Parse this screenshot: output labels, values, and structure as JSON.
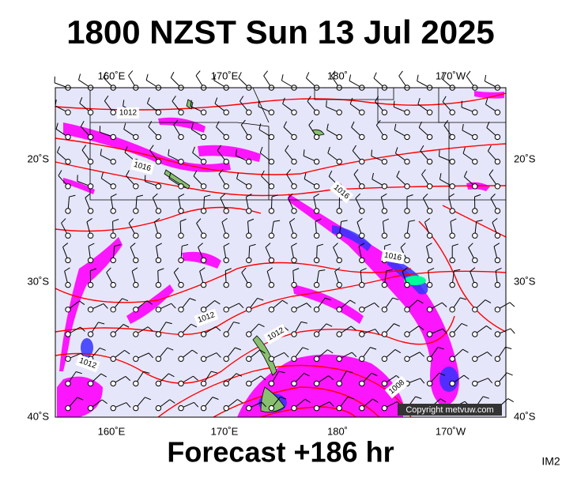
{
  "title": "1800 NZST Sun 13 Jul 2025",
  "map": {
    "lon_labels_top": [
      "160˚E",
      "170˚E",
      "180˚",
      "170˚W"
    ],
    "lon_labels_bottom": [
      "160˚E",
      "170˚E",
      "180˚",
      "170˚W"
    ],
    "lat_labels_left": [
      "20˚S",
      "30˚S",
      "40˚S"
    ],
    "lat_labels_right": [
      "20˚S",
      "30˚S",
      "40˚S"
    ],
    "isobar_labels": [
      "1012",
      "1016",
      "1016",
      "1016",
      "1012",
      "1012",
      "1012",
      "1008"
    ]
  },
  "copyright": "Copyright metvuw.com",
  "footer": "Forecast +186 hr",
  "image_id": "IM2"
}
